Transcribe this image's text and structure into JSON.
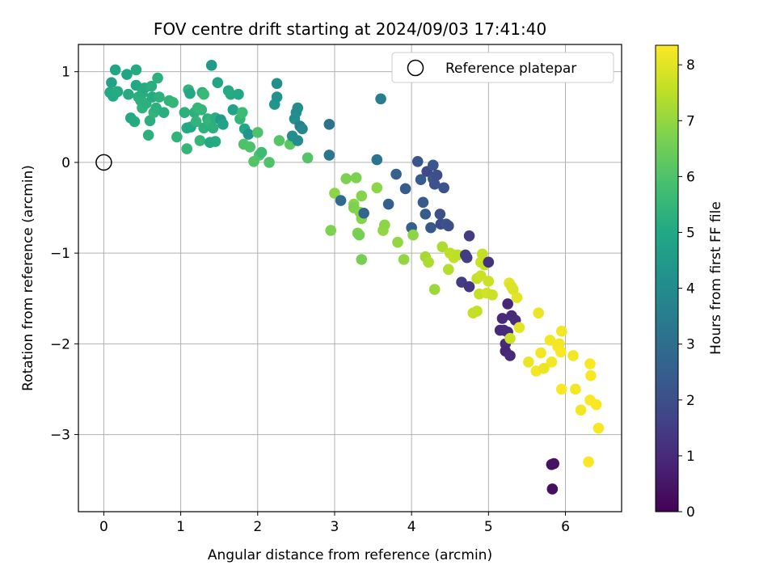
{
  "chart_data": {
    "type": "scatter",
    "title": "FOV centre drift starting at 2024/09/03 17:41:40",
    "xlabel": "Angular distance from reference (arcmin)",
    "ylabel": "Rotation from reference (arcmin)",
    "xlim": [
      -0.33,
      6.73
    ],
    "ylim": [
      -3.85,
      1.3
    ],
    "xticks": [
      0,
      1,
      2,
      3,
      4,
      5,
      6
    ],
    "yticks": [
      1,
      0,
      -1,
      -2,
      -3
    ],
    "xtick_labels": [
      "0",
      "1",
      "2",
      "3",
      "4",
      "5",
      "6"
    ],
    "ytick_labels": [
      "1",
      "0",
      "−1",
      "−2",
      "−3"
    ],
    "grid": true,
    "legend": {
      "placement": "upper-right",
      "entries": [
        "Reference platepar"
      ]
    },
    "reference_point": {
      "x": 0,
      "y": 0
    },
    "colorbar": {
      "label": "Hours from first FF file",
      "min": 0,
      "max": 8.35,
      "ticks": [
        0,
        1,
        2,
        3,
        4,
        5,
        6,
        7,
        8
      ],
      "tick_labels": [
        "0",
        "1",
        "2",
        "3",
        "4",
        "5",
        "6",
        "7",
        "8"
      ],
      "colormap": "viridis"
    },
    "series": [
      {
        "marker": "filled-circle",
        "points": [
          [
            0.08,
            0.77,
            5.0
          ],
          [
            0.1,
            0.88,
            4.8
          ],
          [
            0.12,
            0.73,
            5.0
          ],
          [
            0.15,
            1.02,
            4.9
          ],
          [
            0.18,
            0.78,
            5.1
          ],
          [
            0.3,
            0.97,
            4.9
          ],
          [
            0.32,
            0.75,
            5.1
          ],
          [
            0.35,
            0.49,
            5.0
          ],
          [
            0.4,
            0.45,
            5.1
          ],
          [
            0.42,
            1.02,
            5.1
          ],
          [
            0.42,
            0.85,
            5.0
          ],
          [
            0.45,
            0.72,
            5.2
          ],
          [
            0.48,
            0.68,
            5.3
          ],
          [
            0.5,
            0.6,
            5.4
          ],
          [
            0.5,
            0.76,
            5.2
          ],
          [
            0.53,
            0.82,
            5.1
          ],
          [
            0.55,
            0.65,
            5.3
          ],
          [
            0.58,
            0.3,
            5.3
          ],
          [
            0.6,
            0.46,
            5.2
          ],
          [
            0.62,
            0.84,
            5.2
          ],
          [
            0.63,
            0.72,
            5.1
          ],
          [
            0.65,
            0.55,
            5.4
          ],
          [
            0.68,
            0.6,
            5.3
          ],
          [
            0.7,
            0.93,
            5.3
          ],
          [
            0.72,
            0.72,
            5.3
          ],
          [
            0.78,
            0.55,
            5.2
          ],
          [
            0.85,
            0.68,
            5.4
          ],
          [
            0.9,
            0.66,
            5.5
          ],
          [
            0.95,
            0.28,
            5.4
          ],
          [
            1.05,
            0.55,
            5.3
          ],
          [
            1.08,
            0.15,
            5.5
          ],
          [
            1.08,
            0.38,
            5.1
          ],
          [
            1.1,
            0.8,
            5.4
          ],
          [
            1.12,
            0.76,
            5.0
          ],
          [
            1.13,
            0.39,
            5.0
          ],
          [
            1.18,
            0.55,
            5.3
          ],
          [
            1.2,
            0.45,
            5.4
          ],
          [
            1.22,
            0.6,
            5.5
          ],
          [
            1.25,
            0.24,
            5.5
          ],
          [
            1.27,
            0.58,
            5.5
          ],
          [
            1.28,
            0.77,
            5.2
          ],
          [
            1.3,
            0.38,
            5.3
          ],
          [
            1.3,
            0.75,
            5.6
          ],
          [
            1.35,
            0.48,
            5.3
          ],
          [
            1.38,
            0.45,
            5.5
          ],
          [
            1.38,
            0.22,
            5.0
          ],
          [
            1.4,
            1.07,
            4.5
          ],
          [
            1.42,
            0.38,
            5.3
          ],
          [
            1.45,
            0.49,
            5.2
          ],
          [
            1.45,
            0.23,
            5.1
          ],
          [
            1.48,
            0.88,
            4.9
          ],
          [
            1.52,
            0.47,
            4.5
          ],
          [
            1.55,
            0.42,
            4.8
          ],
          [
            1.62,
            0.79,
            5.0
          ],
          [
            1.65,
            0.75,
            5.1
          ],
          [
            1.68,
            0.58,
            4.8
          ],
          [
            1.75,
            0.75,
            5.0
          ],
          [
            1.77,
            0.48,
            5.5
          ],
          [
            1.8,
            0.55,
            5.7
          ],
          [
            1.82,
            0.2,
            6.0
          ],
          [
            1.83,
            0.37,
            5.0
          ],
          [
            1.88,
            0.31,
            4.3
          ],
          [
            1.9,
            0.17,
            6.0
          ],
          [
            1.95,
            0.01,
            6.1
          ],
          [
            2.0,
            0.33,
            6.0
          ],
          [
            2.02,
            0.08,
            6.0
          ],
          [
            2.05,
            0.11,
            5.7
          ],
          [
            2.15,
            0.0,
            6.0
          ],
          [
            2.22,
            0.64,
            4.4
          ],
          [
            2.25,
            0.87,
            4.1
          ],
          [
            2.25,
            0.72,
            4.2
          ],
          [
            2.28,
            0.24,
            6.1
          ],
          [
            2.42,
            0.2,
            6.2
          ],
          [
            2.45,
            0.29,
            4.1
          ],
          [
            2.48,
            0.48,
            4.1
          ],
          [
            2.5,
            0.55,
            4.0
          ],
          [
            2.52,
            0.6,
            4.0
          ],
          [
            2.52,
            0.24,
            4.0
          ],
          [
            2.55,
            0.4,
            3.5
          ],
          [
            2.58,
            0.37,
            3.8
          ],
          [
            2.65,
            0.05,
            6.1
          ],
          [
            2.93,
            0.08,
            3.3
          ],
          [
            2.93,
            0.42,
            3.2
          ],
          [
            2.95,
            -0.75,
            6.7
          ],
          [
            3.0,
            -0.34,
            6.9
          ],
          [
            3.08,
            -0.42,
            2.9
          ],
          [
            3.15,
            -0.18,
            6.7
          ],
          [
            3.25,
            -0.46,
            6.9
          ],
          [
            3.25,
            -0.5,
            6.7
          ],
          [
            3.28,
            -0.17,
            6.7
          ],
          [
            3.3,
            -0.78,
            6.7
          ],
          [
            3.32,
            -0.8,
            6.6
          ],
          [
            3.33,
            -0.55,
            6.8
          ],
          [
            3.35,
            -0.62,
            6.8
          ],
          [
            3.35,
            -0.37,
            6.8
          ],
          [
            3.35,
            -1.07,
            6.6
          ],
          [
            3.38,
            -0.56,
            2.7
          ],
          [
            3.55,
            -0.28,
            6.9
          ],
          [
            3.55,
            0.03,
            3.2
          ],
          [
            3.6,
            0.7,
            3.5
          ],
          [
            3.63,
            -0.75,
            7.0
          ],
          [
            3.65,
            -0.69,
            6.9
          ],
          [
            3.7,
            -0.46,
            2.5
          ],
          [
            3.8,
            -0.13,
            2.6
          ],
          [
            3.82,
            -0.88,
            7.0
          ],
          [
            3.9,
            -1.07,
            7.0
          ],
          [
            3.92,
            -0.29,
            2.4
          ],
          [
            4.0,
            -0.72,
            2.5
          ],
          [
            4.02,
            -0.8,
            6.9
          ],
          [
            4.08,
            0.01,
            2.2
          ],
          [
            4.12,
            -0.19,
            2.4
          ],
          [
            4.15,
            -0.44,
            2.4
          ],
          [
            4.18,
            -0.57,
            2.4
          ],
          [
            4.18,
            -1.04,
            7.2
          ],
          [
            4.2,
            -0.1,
            1.8
          ],
          [
            4.22,
            -1.1,
            7.3
          ],
          [
            4.25,
            -0.72,
            2.3
          ],
          [
            4.28,
            -0.18,
            2.2
          ],
          [
            4.28,
            -0.03,
            2.2
          ],
          [
            4.3,
            -0.24,
            2.1
          ],
          [
            4.3,
            -1.4,
            7.1
          ],
          [
            4.33,
            -0.14,
            2.0
          ],
          [
            4.37,
            -0.57,
            2.0
          ],
          [
            4.38,
            -0.68,
            1.9
          ],
          [
            4.4,
            -0.93,
            7.3
          ],
          [
            4.42,
            -0.28,
            2.1
          ],
          [
            4.45,
            -0.68,
            2.2
          ],
          [
            4.48,
            -1.18,
            7.4
          ],
          [
            4.48,
            -0.7,
            2.0
          ],
          [
            4.5,
            -1.0,
            7.5
          ],
          [
            4.55,
            -1.02,
            7.5
          ],
          [
            4.55,
            -1.05,
            7.6
          ],
          [
            4.6,
            -1.02,
            7.5
          ],
          [
            4.65,
            -1.32,
            1.5
          ],
          [
            4.7,
            -1.02,
            1.5
          ],
          [
            4.72,
            -1.05,
            1.5
          ],
          [
            4.75,
            -1.37,
            1.3
          ],
          [
            4.75,
            -0.81,
            1.5
          ],
          [
            4.8,
            -1.66,
            7.6
          ],
          [
            4.85,
            -1.28,
            7.6
          ],
          [
            4.85,
            -1.64,
            7.6
          ],
          [
            4.88,
            -1.45,
            7.6
          ],
          [
            4.9,
            -1.25,
            7.7
          ],
          [
            4.9,
            -1.1,
            7.7
          ],
          [
            4.92,
            -1.01,
            7.6
          ],
          [
            4.95,
            -1.13,
            7.6
          ],
          [
            4.98,
            -1.44,
            7.8
          ],
          [
            5.0,
            -1.31,
            7.7
          ],
          [
            5.0,
            -1.1,
            1.2
          ],
          [
            5.05,
            -1.46,
            7.7
          ],
          [
            5.15,
            -1.85,
            1.0
          ],
          [
            5.18,
            -1.72,
            1.0
          ],
          [
            5.2,
            -1.85,
            1.0
          ],
          [
            5.22,
            -2.0,
            1.0
          ],
          [
            5.22,
            -2.08,
            0.9
          ],
          [
            5.25,
            -1.56,
            0.9
          ],
          [
            5.25,
            -1.87,
            1.0
          ],
          [
            5.27,
            -1.33,
            8.0
          ],
          [
            5.28,
            -2.13,
            1.0
          ],
          [
            5.28,
            -1.94,
            7.7
          ],
          [
            5.3,
            -1.37,
            7.9
          ],
          [
            5.3,
            -1.69,
            1.0
          ],
          [
            5.32,
            -1.4,
            7.9
          ],
          [
            5.35,
            -1.74,
            1.0
          ],
          [
            5.37,
            -1.49,
            8.0
          ],
          [
            5.4,
            -1.82,
            8.0
          ],
          [
            5.52,
            -2.2,
            8.1
          ],
          [
            5.62,
            -2.3,
            8.2
          ],
          [
            5.65,
            -1.66,
            8.1
          ],
          [
            5.68,
            -2.1,
            8.2
          ],
          [
            5.72,
            -2.27,
            8.1
          ],
          [
            5.8,
            -1.96,
            8.2
          ],
          [
            5.82,
            -2.2,
            8.2
          ],
          [
            5.82,
            -3.33,
            0.4
          ],
          [
            5.83,
            -3.6,
            0.3
          ],
          [
            5.85,
            -3.32,
            0.4
          ],
          [
            5.9,
            -2.03,
            8.3
          ],
          [
            5.92,
            -2.0,
            8.2
          ],
          [
            5.94,
            -2.09,
            8.3
          ],
          [
            5.95,
            -1.86,
            8.2
          ],
          [
            5.95,
            -2.5,
            8.3
          ],
          [
            6.1,
            -2.13,
            8.2
          ],
          [
            6.13,
            -2.5,
            8.2
          ],
          [
            6.2,
            -2.73,
            8.2
          ],
          [
            6.3,
            -3.3,
            8.3
          ],
          [
            6.32,
            -2.62,
            8.3
          ],
          [
            6.32,
            -2.22,
            8.3
          ],
          [
            6.33,
            -2.35,
            8.3
          ],
          [
            6.4,
            -2.67,
            8.3
          ],
          [
            6.43,
            -2.93,
            8.3
          ]
        ]
      }
    ]
  }
}
